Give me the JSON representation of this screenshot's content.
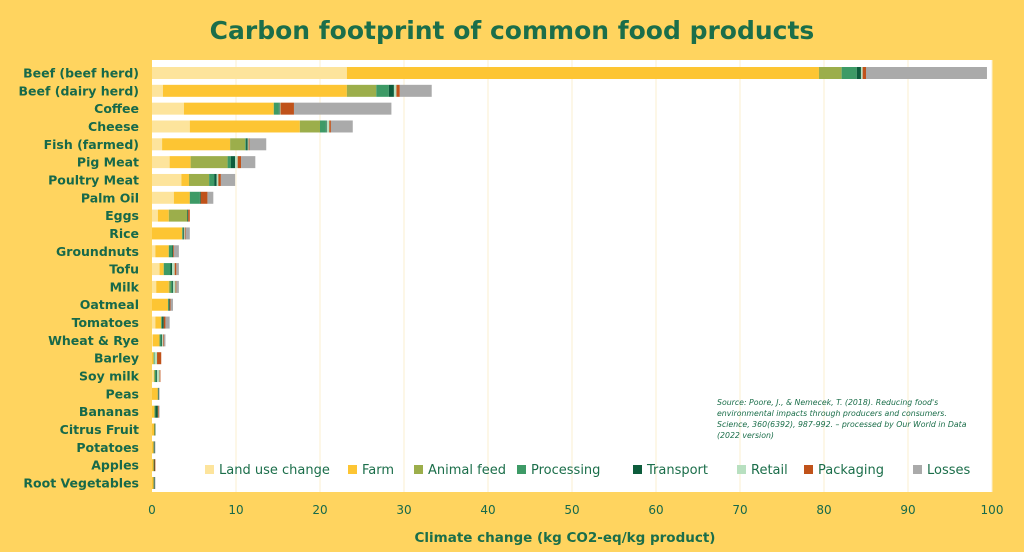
{
  "chart_data": {
    "type": "bar",
    "orientation": "horizontal",
    "stacked": true,
    "title": "Carbon footprint of common food products",
    "xlabel": "Climate change (kg CO2-eq/kg product)",
    "xlim": [
      0,
      100
    ],
    "xticks": [
      0,
      10,
      20,
      30,
      40,
      50,
      60,
      70,
      80,
      90,
      100
    ],
    "grid": true,
    "legend_position": "bottom-inside",
    "source": "Source: Poore, J., & Nemecek, T. (2018). Reducing food's environmental impacts through producers and consumers. Science, 360(6392), 987-992. – processed by Our World in Data (2022 version)",
    "categories": [
      "Beef (beef herd)",
      "Beef (dairy herd)",
      "Coffee",
      "Cheese",
      "Fish (farmed)",
      "Pig Meat",
      "Poultry Meat",
      "Palm Oil",
      "Eggs",
      "Rice",
      "Groundnuts",
      "Tofu",
      "Milk",
      "Oatmeal",
      "Tomatoes",
      "Wheat & Rye",
      "Barley",
      "Soy milk",
      "Peas",
      "Bananas",
      "Citrus Fruit",
      "Potatoes",
      "Apples",
      "Root Vegetables"
    ],
    "series": [
      {
        "name": "Land use change",
        "color": "#fde49c",
        "values": [
          23.2,
          1.3,
          3.8,
          4.5,
          1.2,
          2.1,
          3.5,
          2.6,
          0.7,
          0,
          0.4,
          0.9,
          0.5,
          0,
          0.4,
          0.1,
          0,
          0.2,
          0,
          0,
          0,
          0,
          0,
          0
        ]
      },
      {
        "name": "Farm",
        "color": "#fdc533",
        "values": [
          56.2,
          21.9,
          10.7,
          13.1,
          8.1,
          2.5,
          0.9,
          1.9,
          1.3,
          3.6,
          1.6,
          0.5,
          1.5,
          1.9,
          0.7,
          0.8,
          0.2,
          0.1,
          0.7,
          0.3,
          0.3,
          0.2,
          0.2,
          0.2
        ]
      },
      {
        "name": "Animal feed",
        "color": "#9cae4b",
        "values": [
          2.7,
          3.5,
          0,
          2.4,
          1.8,
          4.4,
          2.4,
          0,
          2.2,
          0,
          0,
          0,
          0.2,
          0,
          0,
          0,
          0,
          0,
          0,
          0,
          0,
          0,
          0,
          0
        ]
      },
      {
        "name": "Processing",
        "color": "#3d9a66",
        "values": [
          1.8,
          1.5,
          0.6,
          0.7,
          0.1,
          0.4,
          0.6,
          1.2,
          0,
          0.1,
          0.4,
          0.8,
          0.2,
          0.1,
          0.1,
          0.2,
          0.1,
          0.2,
          0,
          0.1,
          0,
          0,
          0,
          0
        ]
      },
      {
        "name": "Transport",
        "color": "#0d5c3c",
        "values": [
          0.5,
          0.6,
          0.1,
          0.1,
          0.2,
          0.5,
          0.3,
          0.1,
          0.1,
          0.1,
          0.1,
          0.2,
          0.1,
          0.1,
          0.2,
          0.1,
          0,
          0.1,
          0.1,
          0.3,
          0.1,
          0.1,
          0.1,
          0.1
        ]
      },
      {
        "name": "Retail",
        "color": "#b8e0c0",
        "values": [
          0.2,
          0.3,
          0.1,
          0.3,
          0.1,
          0.3,
          0.2,
          0,
          0,
          0.1,
          0,
          0.3,
          0.3,
          0,
          0,
          0.1,
          0.3,
          0.3,
          0,
          0,
          0,
          0,
          0,
          0
        ]
      },
      {
        "name": "Packaging",
        "color": "#c0521a",
        "values": [
          0.4,
          0.4,
          1.6,
          0.2,
          0.1,
          0.4,
          0.3,
          0.8,
          0.2,
          0.1,
          0.1,
          0.2,
          0.1,
          0.1,
          0.2,
          0.1,
          0.5,
          0.1,
          0,
          0.1,
          0,
          0,
          0.1,
          0
        ]
      },
      {
        "name": "Losses",
        "color": "#aaaaaa",
        "values": [
          14.4,
          3.8,
          11.6,
          2.6,
          2.0,
          1.7,
          1.7,
          0.7,
          0,
          0.5,
          0.6,
          0.3,
          0.3,
          0.3,
          0.5,
          0.2,
          0,
          0,
          0.1,
          0.1,
          0,
          0.1,
          0,
          0.1
        ]
      }
    ]
  }
}
